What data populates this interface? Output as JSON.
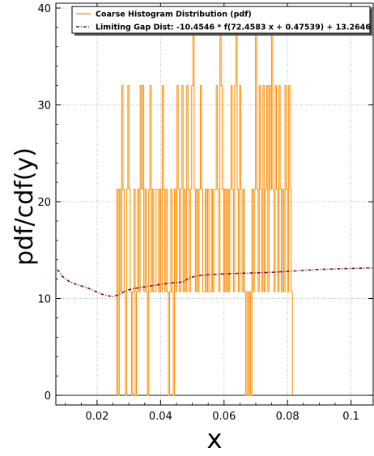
{
  "chart_data": {
    "type": "line",
    "xlabel": "x",
    "ylabel": "pdf/cdf(y)",
    "xlim": [
      0.007,
      0.107
    ],
    "ylim": [
      -1,
      40.5
    ],
    "x_ticks": [
      0.02,
      0.04,
      0.06,
      0.08,
      0.1
    ],
    "x_tick_labels": [
      "0.02",
      "0.04",
      "0.06",
      "0.08",
      "0.1"
    ],
    "y_ticks": [
      0,
      10,
      20,
      30,
      40
    ],
    "y_tick_labels": [
      "0",
      "10",
      "20",
      "30",
      "40"
    ],
    "grid": true,
    "legend_position": "top-right",
    "colors": {
      "histogram": "#ff8c00",
      "limiting": "#6b0f3a",
      "grid": "#9a9a9a"
    },
    "series": [
      {
        "name": "Coarse Histogram Distribution (pdf)",
        "style": "step",
        "bin_width": 0.000387,
        "x_start": 0.0262,
        "heights": [
          21.3,
          0,
          21.3,
          10.7,
          32,
          21.3,
          10.7,
          0,
          21.3,
          32,
          21.3,
          10.7,
          0,
          10.7,
          21.3,
          0,
          10.7,
          21.3,
          10.7,
          32,
          21.3,
          32,
          10.7,
          21.3,
          10.7,
          0,
          21.3,
          32,
          10.7,
          21.3,
          10.7,
          10.7,
          21.3,
          21.3,
          10.7,
          21.3,
          10.7,
          32,
          21.3,
          10.7,
          21.3,
          10.7,
          0,
          10.7,
          21.3,
          10.7,
          0,
          21.3,
          10.7,
          32,
          21.3,
          10.7,
          21.3,
          32,
          10.7,
          21.3,
          10.7,
          32,
          21.3,
          10.7,
          21.3,
          32,
          40,
          21.3,
          10.7,
          21.3,
          10.7,
          21.3,
          32,
          21.3,
          10.7,
          10.7,
          21.3,
          10.7,
          21.3,
          10.7,
          10.7,
          21.3,
          10.7,
          21.3,
          21.3,
          32,
          21.3,
          10.7,
          40,
          32,
          21.3,
          10.7,
          21.3,
          10.7,
          21.3,
          10.7,
          21.3,
          32,
          21.3,
          10.7,
          32,
          40,
          21.3,
          10.7,
          32,
          21.3,
          10.7,
          21.3,
          10.7,
          0,
          10.7,
          0,
          10.7,
          0,
          21.3,
          10.7,
          21.3,
          40,
          21.3,
          10.7,
          32,
          21.3,
          10.7,
          32,
          10.7,
          21.3,
          32,
          10.7,
          32,
          21.3,
          40,
          21.3,
          10.7,
          32,
          21.3,
          10.7,
          32,
          21.3,
          10.7,
          21.3,
          10.7,
          32,
          21.3,
          10.7,
          32,
          21.3,
          10.7
        ]
      },
      {
        "name": "Limiting Gap Dist: -10.4546 * f(72.4583 x + 0.47539) + 13.2646",
        "style": "dash-dot",
        "x": [
          0.0075,
          0.009,
          0.011,
          0.013,
          0.015,
          0.017,
          0.019,
          0.021,
          0.023,
          0.025,
          0.027,
          0.029,
          0.031,
          0.033,
          0.035,
          0.037,
          0.039,
          0.041,
          0.043,
          0.045,
          0.047,
          0.049,
          0.051,
          0.053,
          0.055,
          0.06,
          0.065,
          0.07,
          0.075,
          0.08,
          0.085,
          0.09,
          0.095,
          0.1,
          0.105,
          0.107
        ],
        "y": [
          13,
          12.3,
          11.8,
          11.5,
          11.3,
          11.1,
          10.8,
          10.5,
          10.3,
          10.2,
          10.4,
          10.8,
          11,
          11.1,
          11.2,
          11.3,
          11.4,
          11.5,
          11.6,
          11.65,
          11.7,
          12.1,
          12.3,
          12.4,
          12.45,
          12.55,
          12.6,
          12.65,
          12.7,
          12.8,
          12.9,
          13,
          13.05,
          13.1,
          13.15,
          13.15
        ]
      }
    ]
  }
}
